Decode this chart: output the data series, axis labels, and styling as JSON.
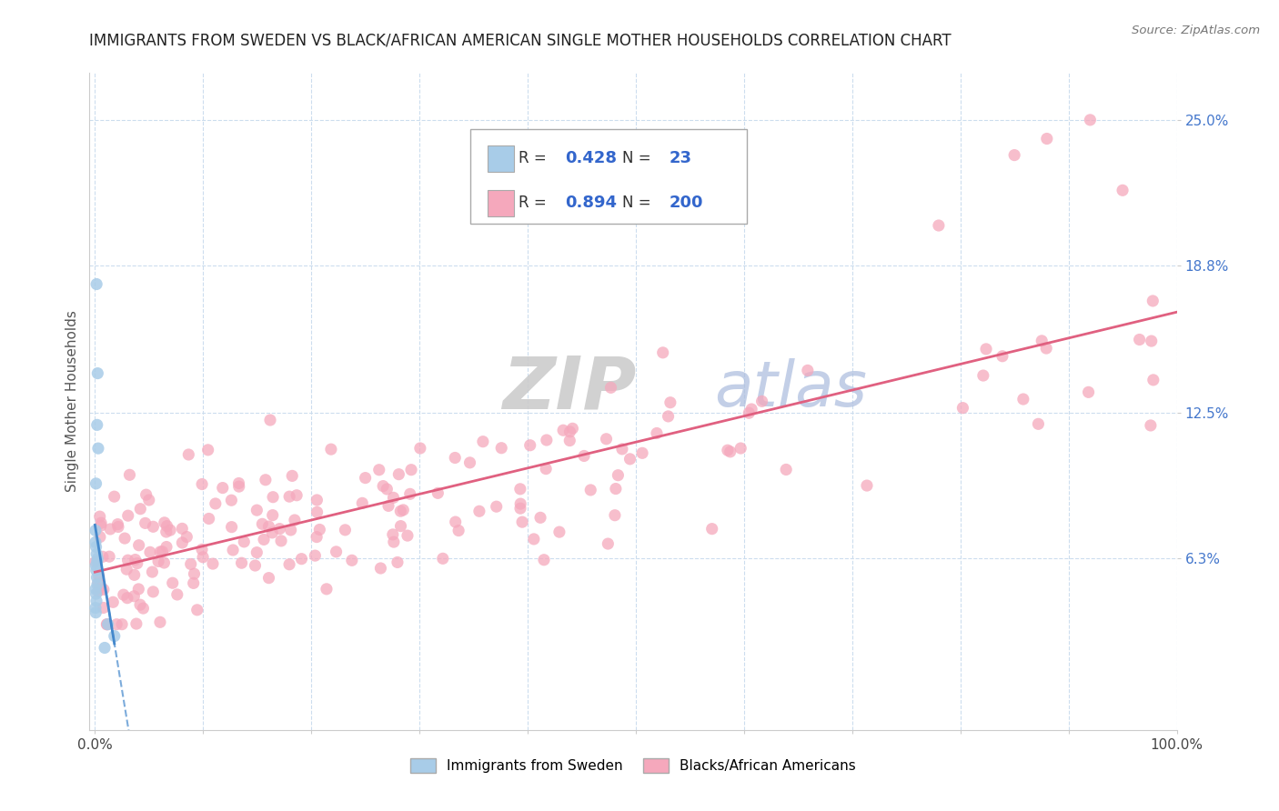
{
  "title": "IMMIGRANTS FROM SWEDEN VS BLACK/AFRICAN AMERICAN SINGLE MOTHER HOUSEHOLDS CORRELATION CHART",
  "source": "Source: ZipAtlas.com",
  "ylabel": "Single Mother Households",
  "sweden_R": 0.428,
  "sweden_N": 23,
  "black_R": 0.894,
  "black_N": 200,
  "sweden_color": "#a8cce8",
  "black_color": "#f5a8bc",
  "sweden_line_color": "#4488cc",
  "black_line_color": "#e06080",
  "y_ticks": [
    6.3,
    12.5,
    18.8,
    25.0
  ],
  "y_tick_labels": [
    "6.3%",
    "12.5%",
    "18.8%",
    "25.0%"
  ],
  "xlim": [
    -0.5,
    100
  ],
  "ylim": [
    -1,
    27
  ],
  "watermark_zip": "ZIP",
  "watermark_atlas": "atlas",
  "background_color": "#ffffff",
  "grid_color": "#ccddee"
}
